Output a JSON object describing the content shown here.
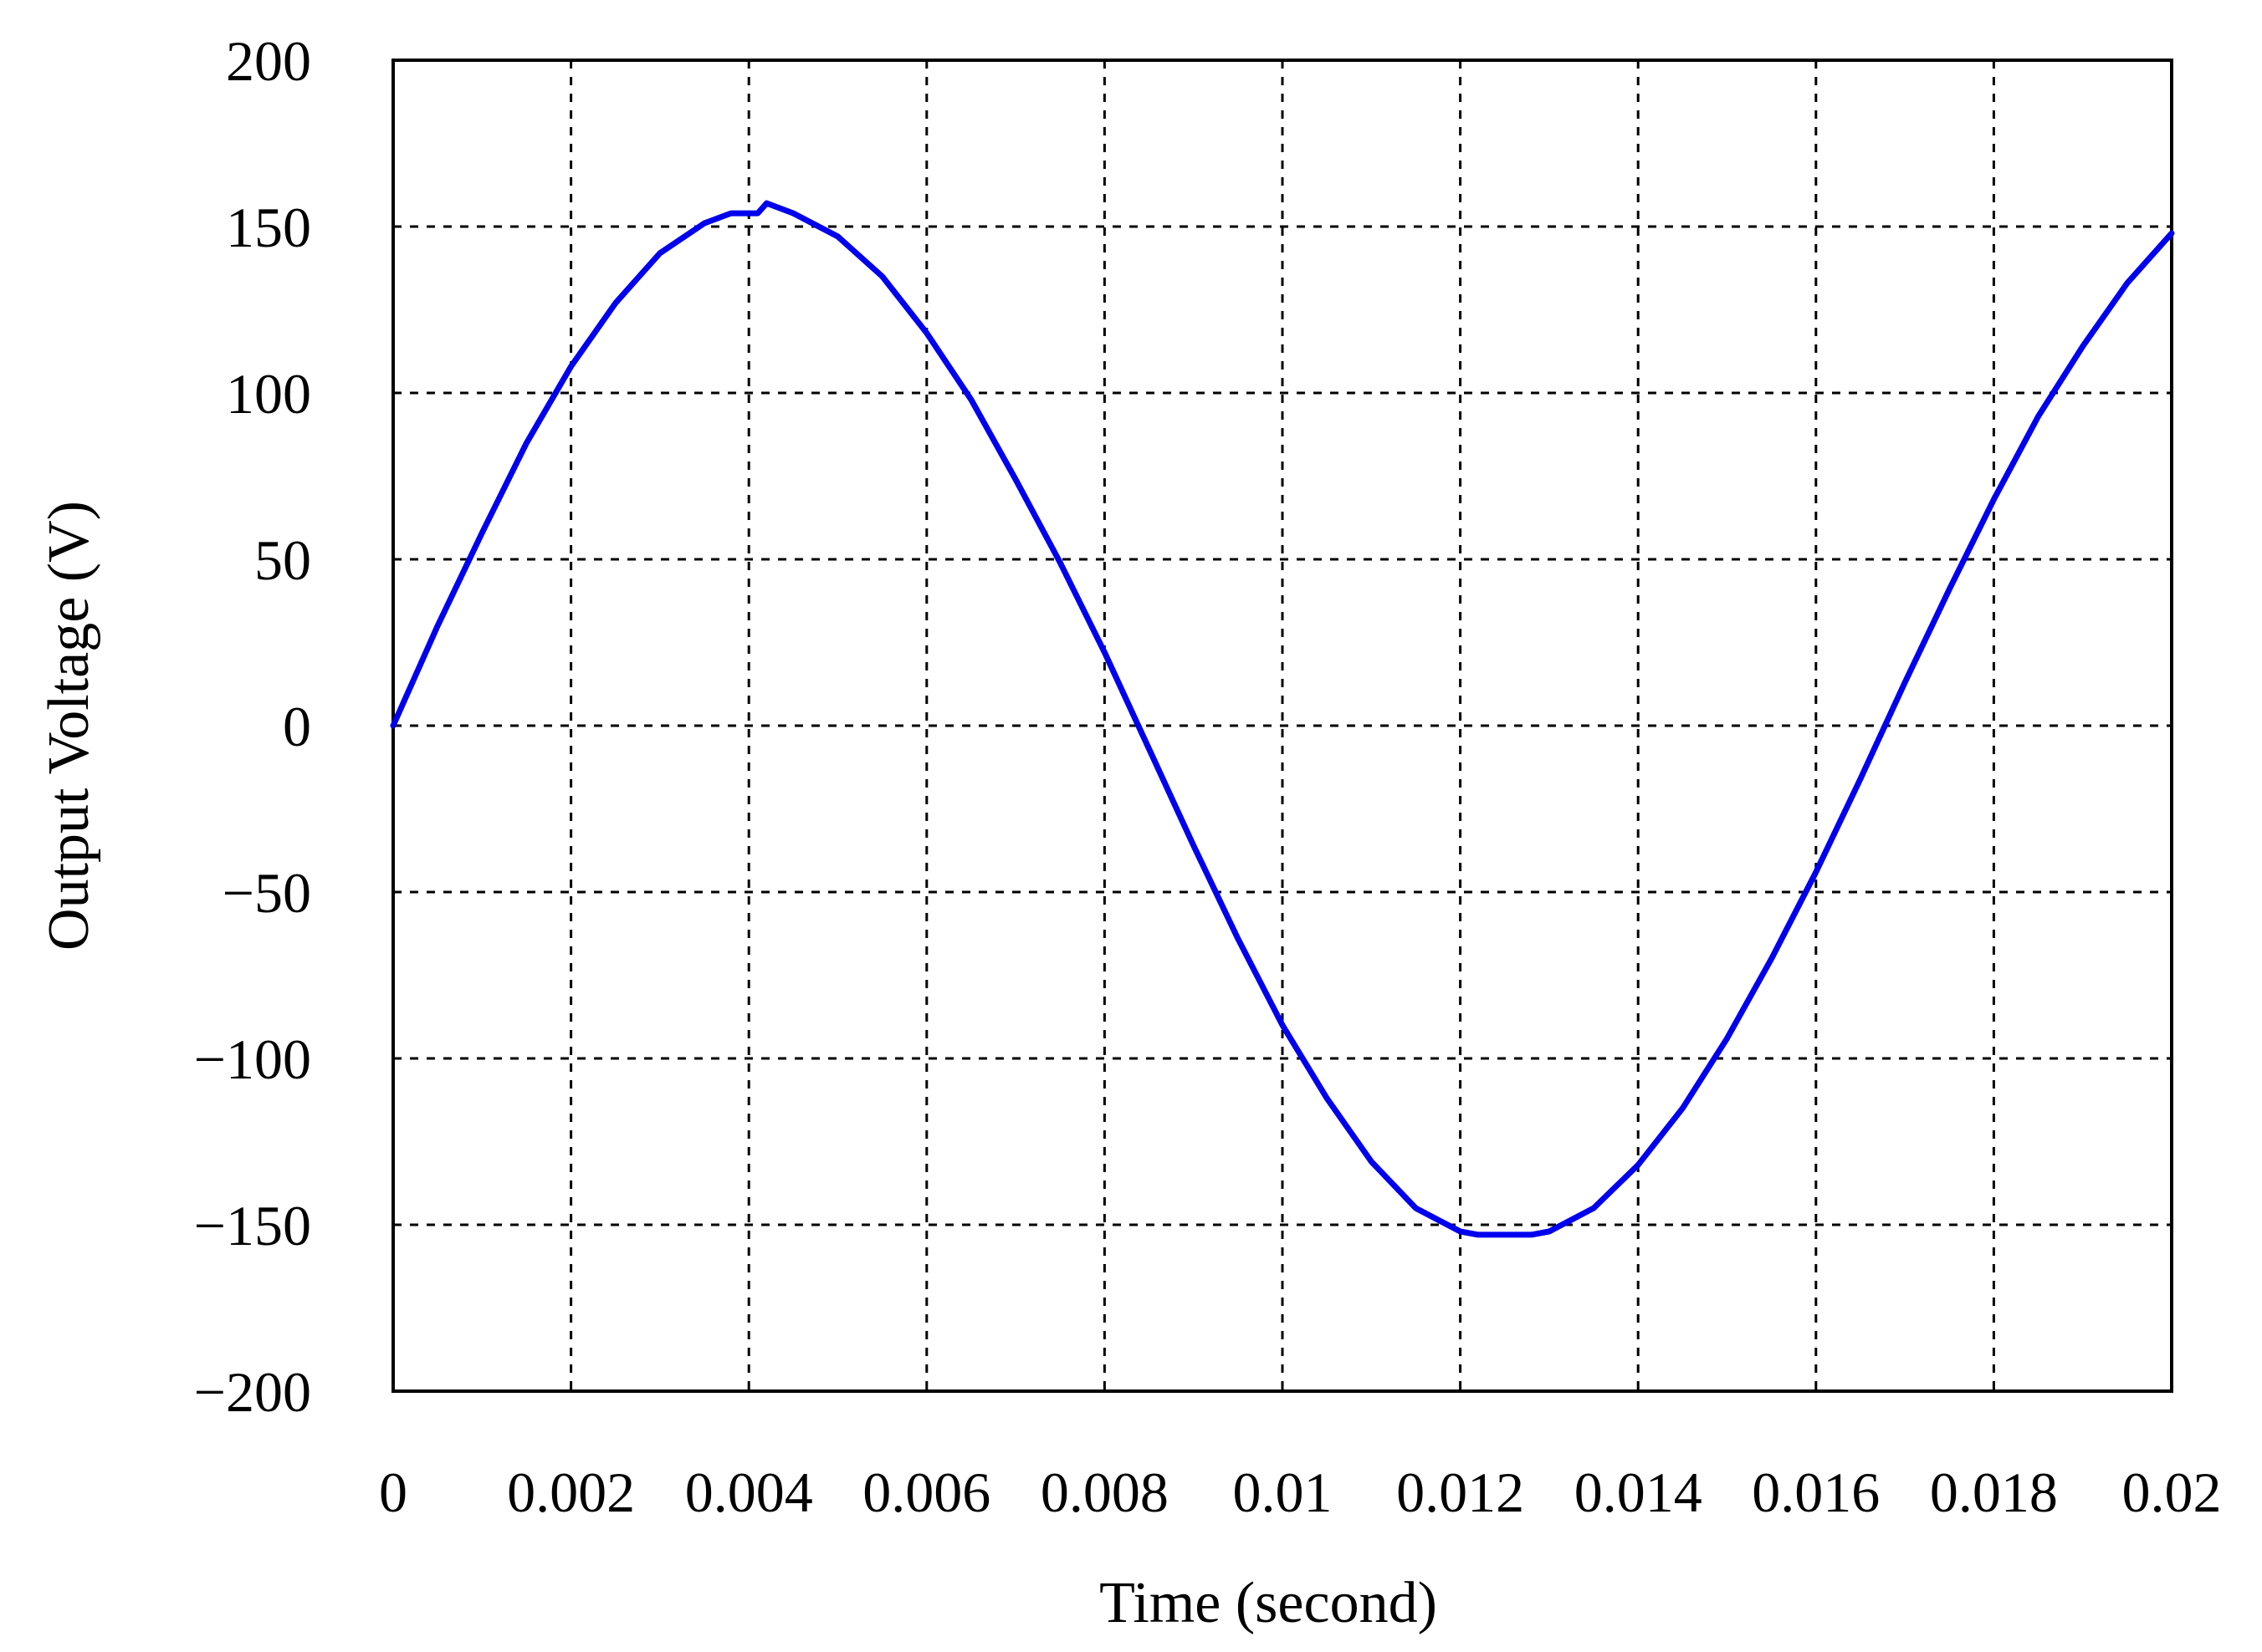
{
  "chart_data": {
    "type": "line",
    "title": "",
    "xlabel": "Time (second)",
    "ylabel": "Output Voltage (V)",
    "xlim": [
      0,
      0.02
    ],
    "ylim": [
      -200,
      200
    ],
    "x_ticks": [
      "0",
      "0.002",
      "0.004",
      "0.006",
      "0.008",
      "0.01",
      "0.012",
      "0.014",
      "0.016",
      "0.018",
      "0.02"
    ],
    "y_ticks": [
      "200",
      "150",
      "100",
      "50",
      "0",
      "−50",
      "−100",
      "−150",
      "−200"
    ],
    "grid": true,
    "series": [
      {
        "color": "#0000ee",
        "x": [
          0,
          0.0005,
          0.001,
          0.0015,
          0.002,
          0.0025,
          0.003,
          0.0035,
          0.0038,
          0.0041,
          0.0042,
          0.0043,
          0.0045,
          0.005,
          0.0055,
          0.006,
          0.0065,
          0.007,
          0.0075,
          0.008,
          0.0085,
          0.009,
          0.0095,
          0.01,
          0.0105,
          0.011,
          0.0115,
          0.012,
          0.0122,
          0.0125,
          0.0128,
          0.013,
          0.0135,
          0.014,
          0.0145,
          0.015,
          0.0155,
          0.016,
          0.0165,
          0.017,
          0.0175,
          0.018,
          0.0185,
          0.019,
          0.0195,
          0.02
        ],
        "y": [
          0,
          30,
          58,
          85,
          108,
          127,
          142,
          151,
          154,
          154,
          157,
          156,
          154,
          147,
          135,
          118,
          98,
          74,
          49,
          22,
          -7,
          -36,
          -64,
          -90,
          -112,
          -131,
          -145,
          -152,
          -153,
          -153,
          -153,
          -152,
          -145,
          -132,
          -115,
          -94,
          -70,
          -44,
          -16,
          13,
          41,
          68,
          93,
          114,
          133,
          148
        ]
      }
    ]
  }
}
